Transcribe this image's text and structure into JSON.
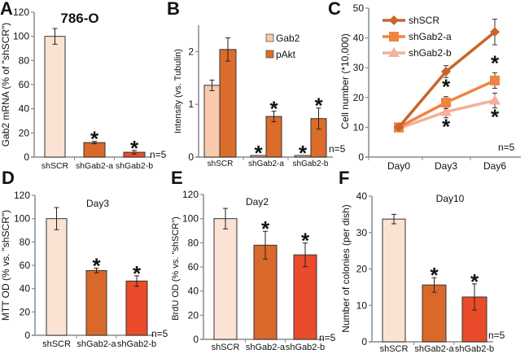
{
  "chart_data": [
    {
      "panel": "A",
      "type": "bar",
      "title": "786-O",
      "ylabel": "Gab2 mRNA (% of \"shSCR\")",
      "categories": [
        "shSCR",
        "shGab2-a",
        "shGab2-b"
      ],
      "ylim": [
        0,
        120
      ],
      "yticks": [
        0,
        20,
        40,
        60,
        80,
        100,
        120
      ],
      "series": [
        {
          "values": [
            100,
            12,
            4
          ],
          "errors": [
            6.5,
            1,
            1.5
          ],
          "colors": [
            "#fbe3d3",
            "#d9692a",
            "#ea4b2b"
          ],
          "significant": [
            false,
            true,
            true
          ]
        }
      ],
      "annotation": "n=5"
    },
    {
      "panel": "B",
      "type": "bar",
      "title": "",
      "ylabel": "Intensity (vs. Tubulin)",
      "categories": [
        "shSCR",
        "shGab2-a",
        "shGab2-b"
      ],
      "ylim": [
        0,
        2.5
      ],
      "yticks": [
        0,
        1,
        2
      ],
      "series": [
        {
          "name": "Gab2",
          "values": [
            1.36,
            0.03,
            0.03
          ],
          "errors": [
            0.1,
            0,
            0
          ],
          "color": "#f8c9ab",
          "significant": [
            false,
            true,
            true
          ]
        },
        {
          "name": "pAkt",
          "values": [
            2.04,
            0.77,
            0.73
          ],
          "errors": [
            0.22,
            0.1,
            0.2
          ],
          "color": "#dc6c2c",
          "significant": [
            false,
            true,
            true
          ]
        }
      ],
      "legend": "top-right",
      "annotation": "n=5"
    },
    {
      "panel": "C",
      "type": "line",
      "title": "",
      "ylabel": "Cell number (*10,000)",
      "categories": [
        "Day0",
        "Day3",
        "Day6"
      ],
      "ylim": [
        0,
        50
      ],
      "yticks": [
        0,
        10,
        20,
        30,
        40,
        50
      ],
      "series": [
        {
          "name": "shSCR",
          "values": [
            10,
            28.7,
            42
          ],
          "errors": [
            0.5,
            2,
            4.3
          ],
          "color": "#c8652a",
          "marker": "diamond",
          "significant": [
            false,
            false,
            false
          ]
        },
        {
          "name": "shGab2-a",
          "values": [
            10,
            18.3,
            25.7
          ],
          "errors": [
            0.5,
            2,
            2.6
          ],
          "color": "#f0843f",
          "marker": "square",
          "significant": [
            false,
            true,
            true
          ]
        },
        {
          "name": "shGab2-b",
          "values": [
            9.6,
            15.2,
            19
          ],
          "errors": [
            0.5,
            2,
            2.5
          ],
          "color": "#f4b09a",
          "marker": "triangle",
          "significant": [
            false,
            true,
            true
          ]
        }
      ],
      "legend": "top-left",
      "annotation": "n=5"
    },
    {
      "panel": "D",
      "type": "bar",
      "title": "Day3",
      "ylabel": "MTT OD (% vs. \"shSCR\")",
      "categories": [
        "shSCR",
        "shGab2-a",
        "shGab2-b"
      ],
      "ylim": [
        0,
        120
      ],
      "yticks": [
        0,
        20,
        40,
        60,
        80,
        100,
        120
      ],
      "series": [
        {
          "values": [
            100,
            55.5,
            46.5
          ],
          "errors": [
            9.5,
            2,
            4.5
          ],
          "colors": [
            "#fbe3d3",
            "#d9692a",
            "#ea4b2b"
          ],
          "significant": [
            false,
            true,
            true
          ]
        }
      ],
      "annotation": "n=5"
    },
    {
      "panel": "E",
      "type": "bar",
      "title": "Day2",
      "ylabel": "BrdU OD (% vs. \"shSCR\")",
      "categories": [
        "shSCR",
        "shGab2-a",
        "shGab2-b"
      ],
      "ylim": [
        0,
        120
      ],
      "yticks": [
        0,
        20,
        40,
        60,
        80,
        100,
        120
      ],
      "series": [
        {
          "values": [
            100,
            78,
            70
          ],
          "errors": [
            8.5,
            11.5,
            9.8
          ],
          "colors": [
            "#fbe3d3",
            "#d9692a",
            "#ea4b2b"
          ],
          "significant": [
            false,
            true,
            true
          ]
        }
      ],
      "annotation": "n=5"
    },
    {
      "panel": "F",
      "type": "bar",
      "title": "Day10",
      "ylabel": "Number of colonies (per dish)",
      "categories": [
        "shSCR",
        "shGab2-a",
        "shGab2-b"
      ],
      "ylim": [
        0,
        40
      ],
      "yticks": [
        0,
        10,
        20,
        30,
        40
      ],
      "series": [
        {
          "values": [
            33.7,
            15.6,
            12.3
          ],
          "errors": [
            1.3,
            2,
            3.6
          ],
          "colors": [
            "#fbe3d3",
            "#d9692a",
            "#ea4b2b"
          ],
          "significant": [
            false,
            true,
            true
          ]
        }
      ],
      "annotation": "n=5"
    }
  ],
  "significance_marker": "*"
}
